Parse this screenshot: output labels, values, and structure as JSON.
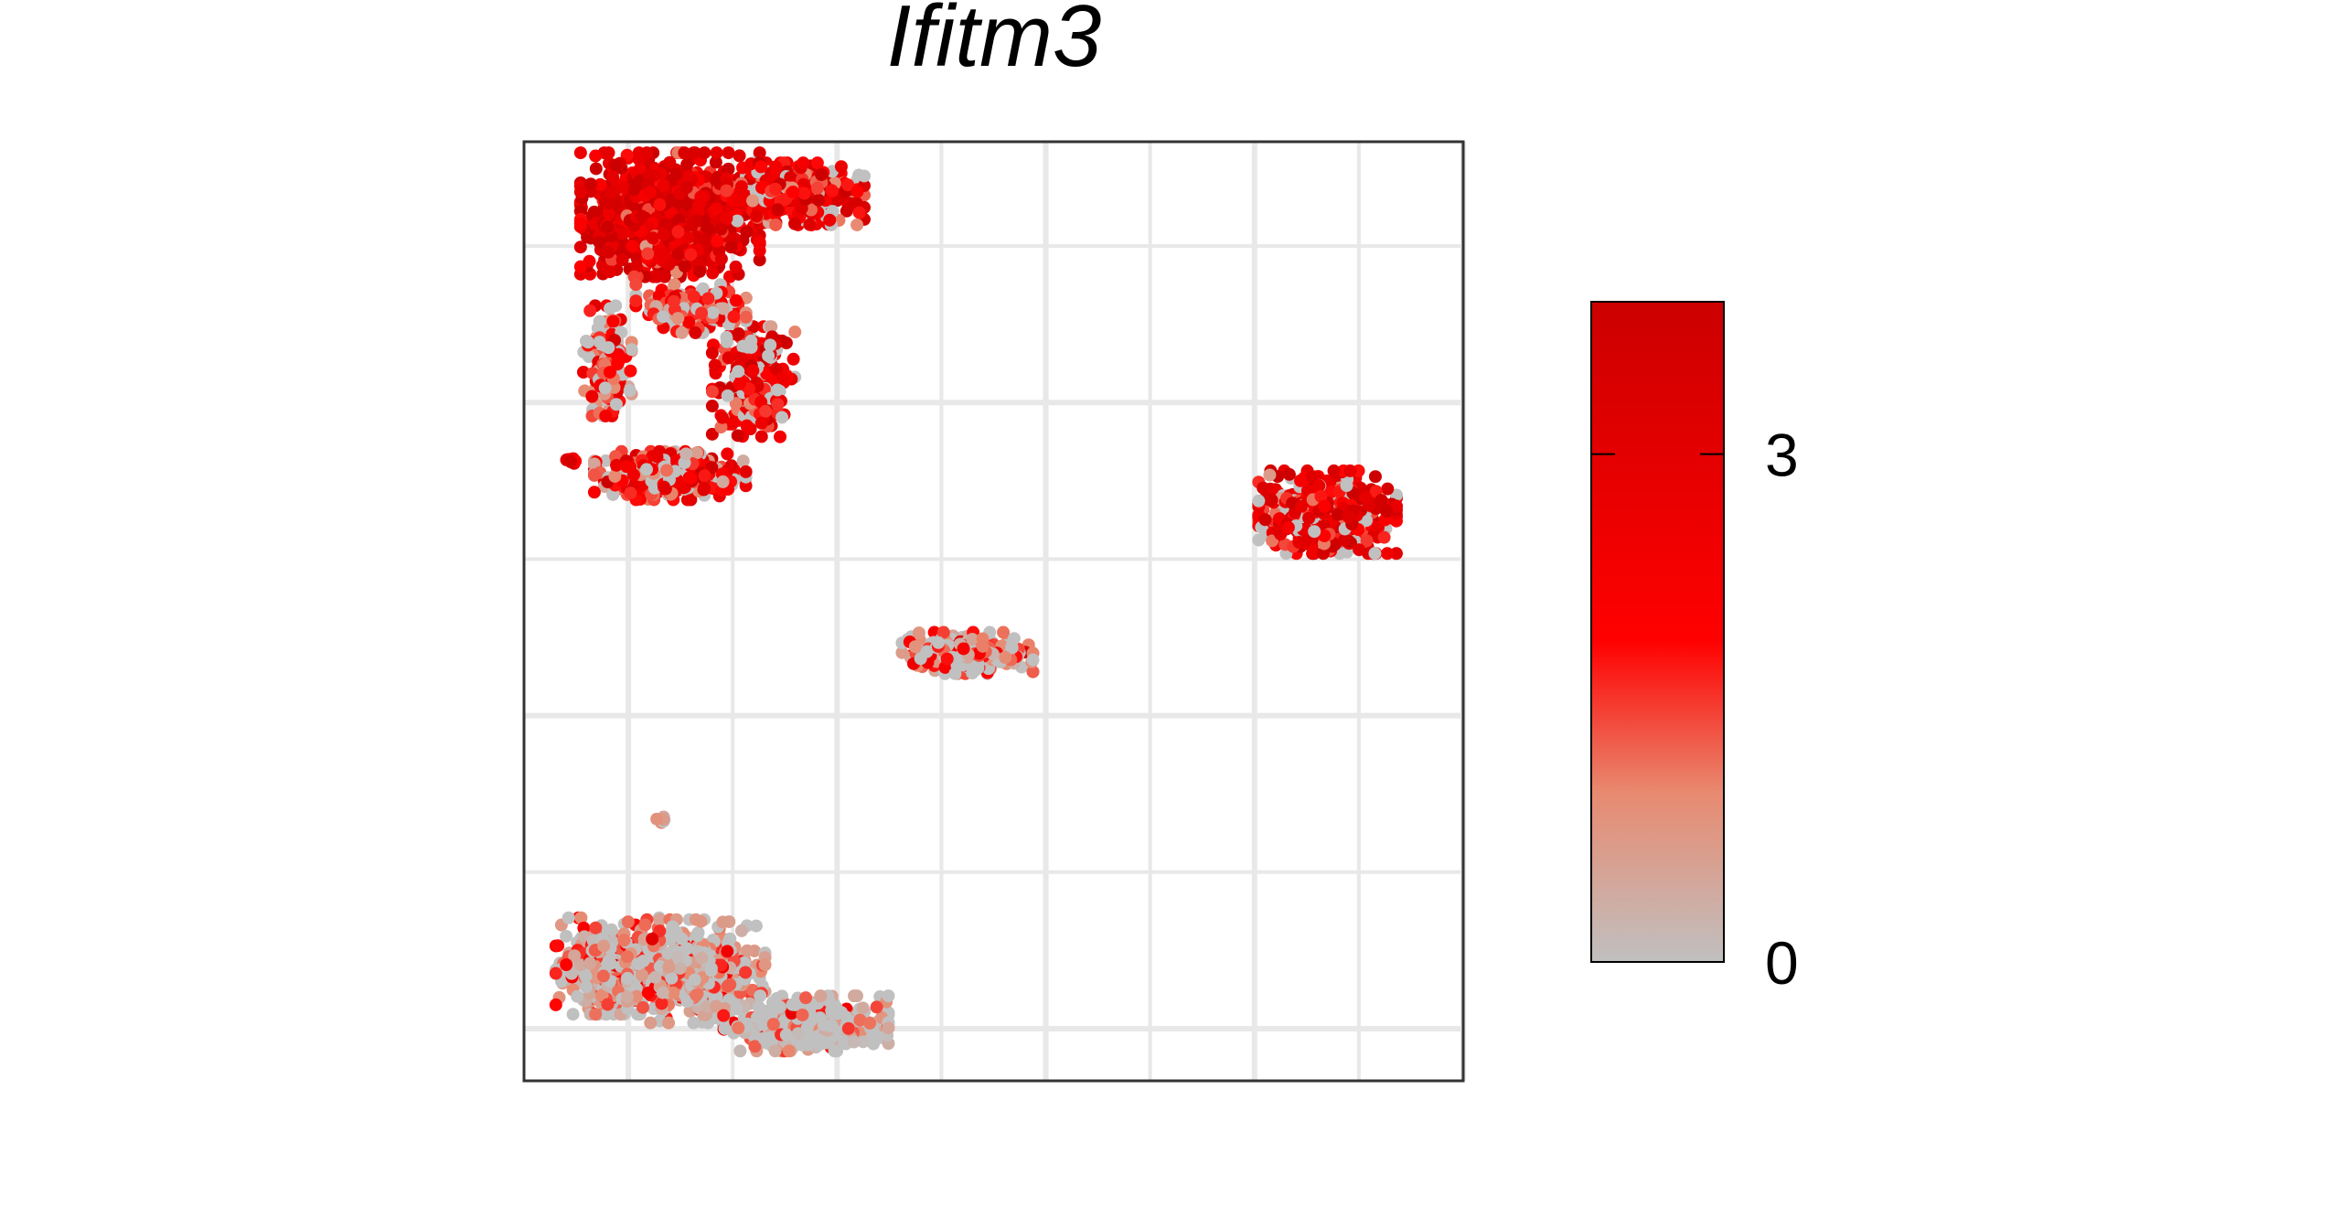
{
  "chart_data": {
    "type": "scatter",
    "title": "Ifitm3",
    "title_style": "italic",
    "xlabel": "",
    "ylabel": "",
    "axes_ticks_visible": false,
    "grid": true,
    "xlim": [
      -9,
      9
    ],
    "ylim": [
      -8,
      10
    ],
    "x_gridlines": [
      -7,
      -5,
      -3,
      -1,
      1,
      3,
      5,
      7,
      9
    ],
    "y_gridlines": [
      -7,
      -4,
      -1,
      2,
      5,
      8
    ],
    "color_scale": {
      "min": 0,
      "max": 3.9,
      "ticks": [
        0,
        3
      ],
      "stops": [
        {
          "value": 0,
          "color": "#c0c0c0"
        },
        {
          "value": 1.0,
          "color": "#e88a70"
        },
        {
          "value": 1.9,
          "color": "#ff0000"
        },
        {
          "value": 3.9,
          "color": "#cc0000"
        }
      ],
      "legend_position": "right"
    },
    "clusters": [
      {
        "label": "top-left-dense",
        "center": [
          -6.2,
          8.6
        ],
        "spread": [
          1.3,
          0.9
        ],
        "count": 900,
        "mean_expr": 3.1
      },
      {
        "label": "top-arm",
        "center": [
          -3.8,
          9.0
        ],
        "spread": [
          1.0,
          0.45
        ],
        "count": 450,
        "mean_expr": 2.4
      },
      {
        "label": "ring-left",
        "center": [
          -7.4,
          5.8
        ],
        "spread": [
          0.35,
          0.8
        ],
        "count": 160,
        "mean_expr": 1.6
      },
      {
        "label": "ring-right",
        "center": [
          -4.6,
          5.4
        ],
        "spread": [
          0.6,
          0.8
        ],
        "count": 260,
        "mean_expr": 2.5
      },
      {
        "label": "ring-top",
        "center": [
          -5.8,
          6.8
        ],
        "spread": [
          0.8,
          0.35
        ],
        "count": 160,
        "mean_expr": 1.4
      },
      {
        "label": "ring-bottom",
        "center": [
          -6.2,
          3.6
        ],
        "spread": [
          1.1,
          0.35
        ],
        "count": 380,
        "mean_expr": 1.9
      },
      {
        "label": "small-left-dot",
        "center": [
          -8.1,
          3.9
        ],
        "spread": [
          0.1,
          0.05
        ],
        "count": 12,
        "mean_expr": 3.0
      },
      {
        "label": "right-blob",
        "center": [
          6.4,
          2.9
        ],
        "spread": [
          1.0,
          0.6
        ],
        "count": 520,
        "mean_expr": 2.6
      },
      {
        "label": "middle-small",
        "center": [
          -0.5,
          0.2
        ],
        "spread": [
          0.95,
          0.3
        ],
        "count": 300,
        "mean_expr": 0.9
      },
      {
        "label": "tiny-outlier",
        "center": [
          -6.35,
          -3.0
        ],
        "spread": [
          0.08,
          0.05
        ],
        "count": 8,
        "mean_expr": 0.1
      },
      {
        "label": "bottom-left",
        "center": [
          -7.4,
          -5.8
        ],
        "spread": [
          0.75,
          0.7
        ],
        "count": 420,
        "mean_expr": 0.6
      },
      {
        "label": "bottom-mid",
        "center": [
          -5.7,
          -5.9
        ],
        "spread": [
          1.0,
          0.75
        ],
        "count": 420,
        "mean_expr": 0.55
      },
      {
        "label": "bottom-right-tail",
        "center": [
          -3.6,
          -6.9
        ],
        "spread": [
          1.2,
          0.4
        ],
        "count": 420,
        "mean_expr": 0.15
      }
    ]
  }
}
